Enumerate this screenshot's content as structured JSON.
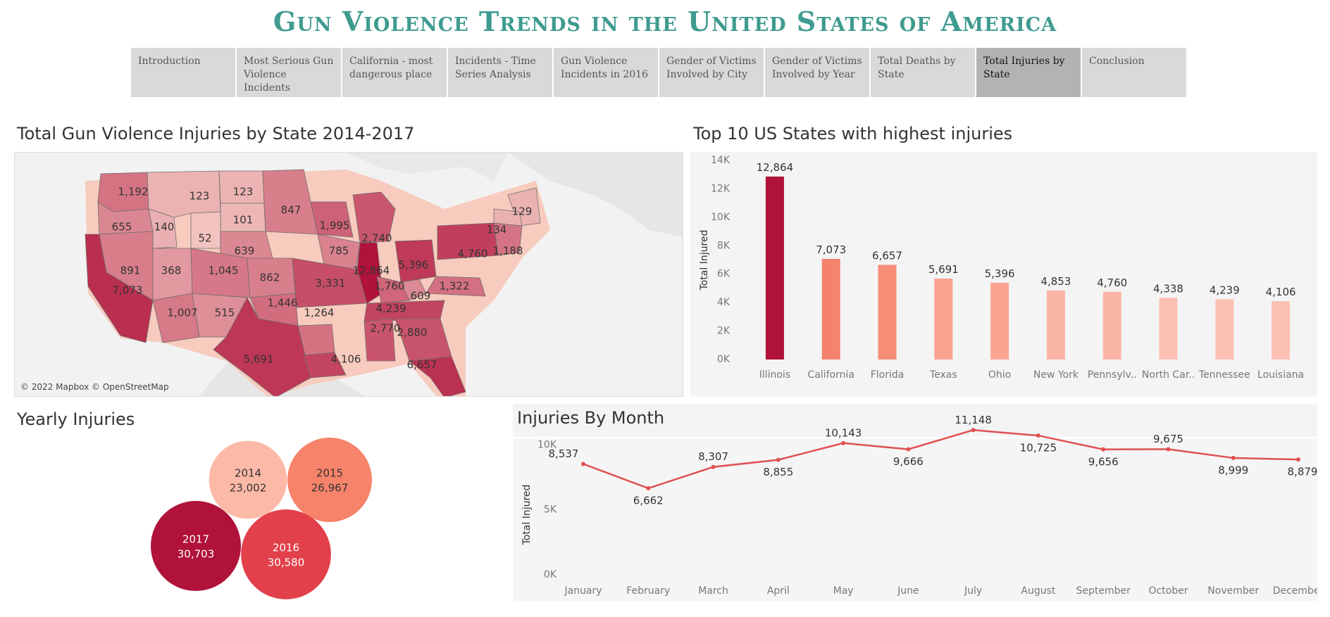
{
  "title": "Gun Violence Trends in the United States of America",
  "tabs": [
    {
      "label": "Introduction",
      "active": false
    },
    {
      "label": "Most Serious Gun Violence Incidents",
      "active": false
    },
    {
      "label": "California - most dangerous place",
      "active": false
    },
    {
      "label": "Incidents - Time Series Analysis",
      "active": false
    },
    {
      "label": "Gun Violence Incidents in 2016",
      "active": false
    },
    {
      "label": "Gender of Victims Involved by City",
      "active": false
    },
    {
      "label": "Gender of Victims Involved by Year",
      "active": false
    },
    {
      "label": "Total Deaths by State",
      "active": false
    },
    {
      "label": "Total Injuries by State",
      "active": true
    },
    {
      "label": "Conclusion",
      "active": false
    }
  ],
  "map": {
    "title": "Total Gun Violence Injuries by State 2014-2017",
    "attribution": "© 2022 Mapbox © OpenStreetMap",
    "states": [
      {
        "label": "1,192",
        "value": 1192
      },
      {
        "label": "655",
        "value": 655
      },
      {
        "label": "123",
        "value": 123
      },
      {
        "label": "140",
        "value": 140
      },
      {
        "label": "123",
        "value": 123
      },
      {
        "label": "101",
        "value": 101
      },
      {
        "label": "52",
        "value": 52
      },
      {
        "label": "639",
        "value": 639
      },
      {
        "label": "847",
        "value": 847
      },
      {
        "label": "1,995",
        "value": 1995
      },
      {
        "label": "2,740",
        "value": 2740
      },
      {
        "label": "785",
        "value": 785
      },
      {
        "label": "12,864",
        "value": 12864
      },
      {
        "label": "891",
        "value": 891
      },
      {
        "label": "368",
        "value": 368
      },
      {
        "label": "1,045",
        "value": 1045
      },
      {
        "label": "862",
        "value": 862
      },
      {
        "label": "3,331",
        "value": 3331
      },
      {
        "label": "5,396",
        "value": 5396
      },
      {
        "label": "4,760",
        "value": 4760
      },
      {
        "label": "1,188",
        "value": 1188
      },
      {
        "label": "609",
        "value": 609
      },
      {
        "label": "1,322",
        "value": 1322
      },
      {
        "label": "1,760",
        "value": 1760
      },
      {
        "label": "7,073",
        "value": 7073
      },
      {
        "label": "1,446",
        "value": 1446
      },
      {
        "label": "4,239",
        "value": 4239
      },
      {
        "label": "1,007",
        "value": 1007
      },
      {
        "label": "515",
        "value": 515
      },
      {
        "label": "1,264",
        "value": 1264
      },
      {
        "label": "2,770",
        "value": 2770
      },
      {
        "label": "2,880",
        "value": 2880
      },
      {
        "label": "5,691",
        "value": 5691
      },
      {
        "label": "4,106",
        "value": 4106
      },
      {
        "label": "6,657",
        "value": 6657
      },
      {
        "label": "129",
        "value": 129
      },
      {
        "label": "134",
        "value": 134
      }
    ]
  },
  "chart_data": [
    {
      "type": "bar",
      "title": "Top 10 US States with highest injuries",
      "ylabel": "Total Injured",
      "ylim": [
        0,
        14000
      ],
      "yticks": [
        "0K",
        "2K",
        "4K",
        "6K",
        "8K",
        "10K",
        "12K",
        "14K"
      ],
      "categories": [
        "Illinois",
        "California",
        "Florida",
        "Texas",
        "Ohio",
        "New York",
        "Pennsylv..",
        "North Car..",
        "Tennessee",
        "Louisiana"
      ],
      "values": [
        12864,
        7073,
        6657,
        5691,
        5396,
        4853,
        4760,
        4338,
        4239,
        4106
      ],
      "value_labels": [
        "12,864",
        "7,073",
        "6,657",
        "5,691",
        "5,396",
        "4,853",
        "4,760",
        "4,338",
        "4,239",
        "4,106"
      ],
      "colors": [
        "#b0123a",
        "#f4826c",
        "#f68d77",
        "#f9a390",
        "#f9a591",
        "#fbb5a6",
        "#fbb5a6",
        "#fcc0b3",
        "#fcc0b3",
        "#fcc0b3"
      ]
    },
    {
      "type": "bubble",
      "title": "Yearly Injuries",
      "categories": [
        "2014",
        "2015",
        "2016",
        "2017"
      ],
      "values": [
        23002,
        26967,
        30580,
        30703
      ],
      "value_labels": [
        "23,002",
        "26,967",
        "30,580",
        "30,703"
      ],
      "colors": [
        "#fcb9a8",
        "#f6836a",
        "#e2404a",
        "#b0123a"
      ],
      "text_colors": [
        "#333333",
        "#333333",
        "#ffffff",
        "#ffffff"
      ]
    },
    {
      "type": "line",
      "title": "Injuries  By Month",
      "ylabel": "Total Injured",
      "ylim": [
        0,
        11000
      ],
      "yticks": [
        "0K",
        "5K",
        "10K"
      ],
      "categories": [
        "January",
        "February",
        "March",
        "April",
        "May",
        "June",
        "July",
        "August",
        "September",
        "October",
        "November",
        "December"
      ],
      "values": [
        8537,
        6662,
        8307,
        8855,
        10143,
        9666,
        11148,
        10725,
        9656,
        9675,
        8999,
        8879
      ],
      "value_labels": [
        "8,537",
        "6,662",
        "8,307",
        "8,855",
        "10,143",
        "9,666",
        "11,148",
        "10,725",
        "9,656",
        "9,675",
        "8,999",
        "8,879"
      ],
      "color": "#e05050"
    }
  ]
}
